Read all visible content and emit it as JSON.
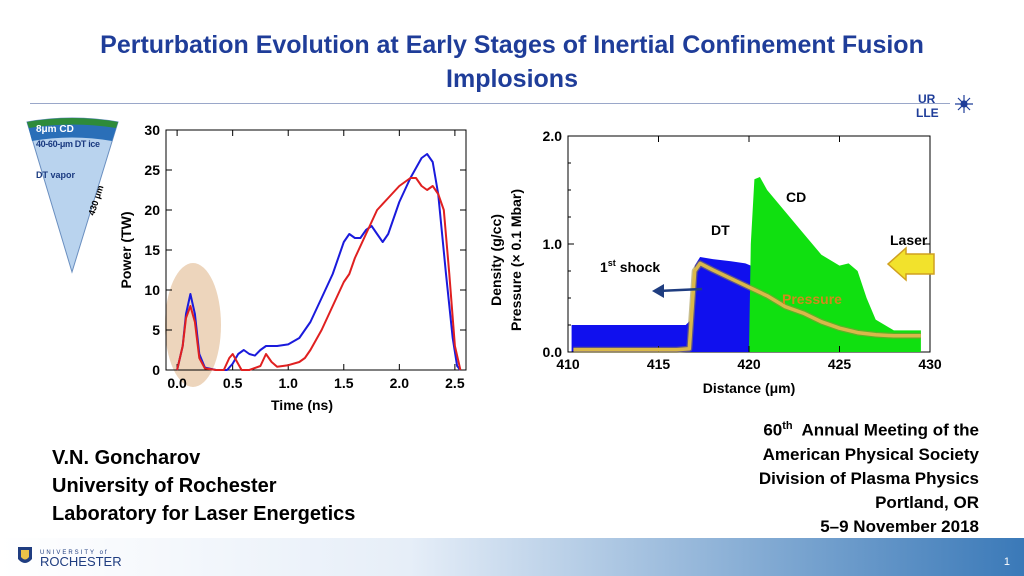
{
  "slide": {
    "title": "Perturbation Evolution at Early Stages of Inertial Confinement Fusion Implosions",
    "page_number": "1",
    "logos": {
      "lab_logo_text": [
        "UR",
        "LLE"
      ],
      "university_logo_text": [
        "UNIVERSITY of",
        "ROCHESTER"
      ]
    }
  },
  "author": {
    "name": "V.N. Goncharov",
    "affiliation": "University of Rochester",
    "lab": "Laboratory for Laser Energetics"
  },
  "meeting": {
    "ordinal_number": "60",
    "ordinal_suffix": "th",
    "line1_rest": "Annual Meeting of the",
    "line2": "American Physical Society",
    "line3": "Division of Plasma Physics",
    "line4": "Portland, OR",
    "line5": "5–9 November 2018"
  },
  "target_diagram": {
    "layers": [
      "8μm CD",
      "40-60-μm DT ice",
      "DT vapor"
    ],
    "radius_label": "430 μm",
    "colors": {
      "cd": "#2e8b3a",
      "ice": "#2a6fb8",
      "vapor": "#b9d3ee"
    }
  },
  "chart_data": [
    {
      "type": "line",
      "xlabel": "Time (ns)",
      "ylabel": "Power (TW)",
      "xlim": [
        -0.1,
        2.6
      ],
      "ylim": [
        0,
        30
      ],
      "xticks": [
        "0.0",
        "0.5",
        "1.0",
        "1.5",
        "2.0",
        "2.5"
      ],
      "yticks": [
        "0",
        "5",
        "10",
        "15",
        "20",
        "25",
        "30"
      ],
      "highlight": {
        "x_range": [
          -0.05,
          0.3
        ],
        "shape": "ellipse",
        "color": "#e7c7a6"
      },
      "series": [
        {
          "color": "#1a1adc",
          "points": [
            [
              0.0,
              0
            ],
            [
              0.05,
              3
            ],
            [
              0.08,
              7
            ],
            [
              0.12,
              9.5
            ],
            [
              0.16,
              7
            ],
            [
              0.2,
              2
            ],
            [
              0.25,
              0.3
            ],
            [
              0.35,
              0
            ],
            [
              0.45,
              0
            ],
            [
              0.5,
              0.8
            ],
            [
              0.55,
              2
            ],
            [
              0.6,
              2.5
            ],
            [
              0.65,
              2
            ],
            [
              0.7,
              1.8
            ],
            [
              0.75,
              2.5
            ],
            [
              0.8,
              3
            ],
            [
              0.9,
              3
            ],
            [
              1.0,
              3.2
            ],
            [
              1.1,
              4
            ],
            [
              1.2,
              6
            ],
            [
              1.3,
              9
            ],
            [
              1.4,
              12
            ],
            [
              1.5,
              16
            ],
            [
              1.55,
              17
            ],
            [
              1.6,
              16.5
            ],
            [
              1.65,
              16.5
            ],
            [
              1.7,
              17.5
            ],
            [
              1.75,
              18
            ],
            [
              1.8,
              17
            ],
            [
              1.85,
              16
            ],
            [
              1.9,
              17
            ],
            [
              2.0,
              21
            ],
            [
              2.1,
              24
            ],
            [
              2.2,
              26.5
            ],
            [
              2.25,
              27
            ],
            [
              2.3,
              26
            ],
            [
              2.35,
              22
            ],
            [
              2.42,
              12
            ],
            [
              2.48,
              4
            ],
            [
              2.52,
              0.5
            ],
            [
              2.55,
              0
            ]
          ]
        },
        {
          "color": "#e02020",
          "points": [
            [
              0.0,
              0
            ],
            [
              0.05,
              3
            ],
            [
              0.08,
              6.5
            ],
            [
              0.12,
              8
            ],
            [
              0.16,
              6
            ],
            [
              0.2,
              1.5
            ],
            [
              0.25,
              0.2
            ],
            [
              0.35,
              0
            ],
            [
              0.42,
              0
            ],
            [
              0.47,
              1.5
            ],
            [
              0.5,
              2
            ],
            [
              0.54,
              1
            ],
            [
              0.58,
              0
            ],
            [
              0.65,
              0
            ],
            [
              0.75,
              0.5
            ],
            [
              0.8,
              2
            ],
            [
              0.85,
              1
            ],
            [
              0.9,
              0.4
            ],
            [
              1.0,
              0.6
            ],
            [
              1.1,
              1
            ],
            [
              1.15,
              1.5
            ],
            [
              1.2,
              2.5
            ],
            [
              1.3,
              5
            ],
            [
              1.4,
              8
            ],
            [
              1.5,
              11
            ],
            [
              1.55,
              12
            ],
            [
              1.6,
              14
            ],
            [
              1.7,
              17
            ],
            [
              1.8,
              20
            ],
            [
              1.9,
              21.5
            ],
            [
              2.0,
              23
            ],
            [
              2.1,
              24
            ],
            [
              2.15,
              24
            ],
            [
              2.2,
              23
            ],
            [
              2.25,
              22.5
            ],
            [
              2.3,
              23
            ],
            [
              2.35,
              22
            ],
            [
              2.4,
              20
            ],
            [
              2.45,
              12
            ],
            [
              2.5,
              3
            ],
            [
              2.55,
              0
            ]
          ]
        }
      ]
    },
    {
      "type": "area",
      "xlabel": "Distance (μm)",
      "ylabel": "Density (g/cc)",
      "ylabel2": "Pressure (× 0.1 Mbar)",
      "xlim": [
        410,
        430
      ],
      "ylim": [
        0,
        2
      ],
      "xticks": [
        "410",
        "415",
        "420",
        "425",
        "430"
      ],
      "yticks": [
        "0.0",
        "1.0",
        "2.0"
      ],
      "regions": [
        {
          "name": "DT",
          "color": "#1010ee",
          "points": [
            [
              410.2,
              0
            ],
            [
              410.2,
              0.25
            ],
            [
              416.5,
              0.25
            ],
            [
              416.8,
              0.3
            ],
            [
              417.0,
              0.8
            ],
            [
              417.3,
              0.88
            ],
            [
              418,
              0.86
            ],
            [
              419,
              0.84
            ],
            [
              419.8,
              0.82
            ],
            [
              420.1,
              0.8
            ],
            [
              420.1,
              0
            ]
          ]
        },
        {
          "name": "CD",
          "color": "#10e010",
          "points": [
            [
              420.0,
              0
            ],
            [
              420.1,
              1.0
            ],
            [
              420.3,
              1.6
            ],
            [
              420.6,
              1.62
            ],
            [
              421,
              1.5
            ],
            [
              422,
              1.3
            ],
            [
              423,
              1.1
            ],
            [
              424,
              0.9
            ],
            [
              425,
              0.8
            ],
            [
              425.5,
              0.82
            ],
            [
              426,
              0.75
            ],
            [
              426.5,
              0.5
            ],
            [
              427,
              0.3
            ],
            [
              428,
              0.2
            ],
            [
              429.5,
              0.2
            ],
            [
              429.5,
              0
            ]
          ]
        }
      ],
      "series": [
        {
          "name": "Pressure",
          "color": "#d9b84a",
          "points": [
            [
              410.3,
              0.02
            ],
            [
              412,
              0.02
            ],
            [
              414,
              0.02
            ],
            [
              416,
              0.02
            ],
            [
              416.7,
              0.03
            ],
            [
              417,
              0.75
            ],
            [
              417.3,
              0.82
            ],
            [
              418,
              0.76
            ],
            [
              419,
              0.68
            ],
            [
              420,
              0.6
            ],
            [
              421,
              0.52
            ],
            [
              422,
              0.42
            ],
            [
              423,
              0.36
            ],
            [
              424,
              0.28
            ],
            [
              425,
              0.22
            ],
            [
              426,
              0.18
            ],
            [
              427,
              0.16
            ],
            [
              428,
              0.15
            ],
            [
              429.5,
              0.15
            ]
          ]
        }
      ],
      "annotations": {
        "cd": "CD",
        "dt": "DT",
        "laser": "Laser",
        "shock": "1st shock",
        "shock_base": "1",
        "shock_sup": "st",
        "shock_rest": " shock",
        "pressure": "Pressure"
      }
    }
  ]
}
